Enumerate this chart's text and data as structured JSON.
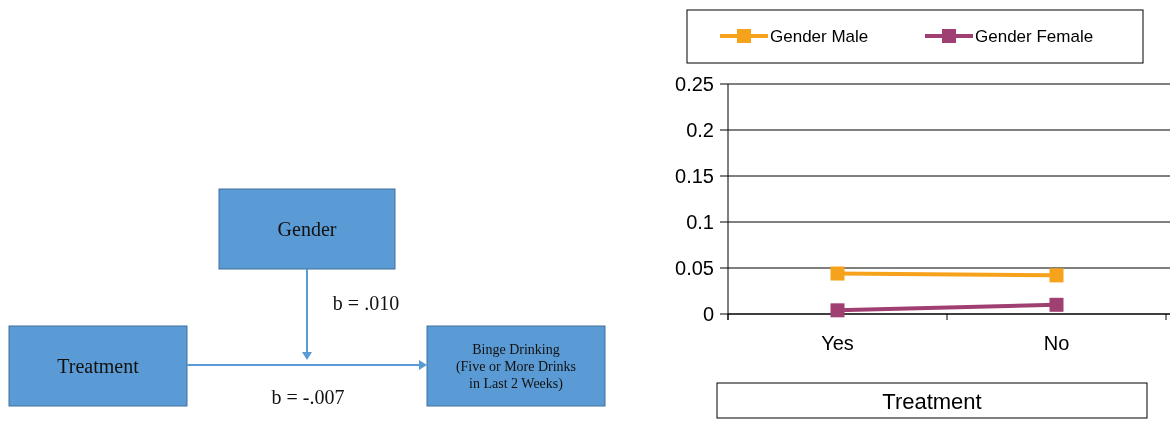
{
  "chart_data": [
    {
      "type": "other",
      "annotations": [
        "Gender",
        "Treatment",
        "Binge Drinking\n(Five or More Drinks\nin Last 2 Weeks)",
        "b = .010",
        "b = -.007"
      ]
    },
    {
      "type": "line",
      "categories": [
        "Yes",
        "No"
      ],
      "xlabel": "Treatment",
      "ylim": [
        0,
        0.25
      ],
      "yticks": [
        0,
        0.05,
        0.1,
        0.15,
        0.2,
        0.25
      ],
      "grid": "y",
      "legend": "top",
      "marker": "square",
      "line_style": "solid",
      "series": [
        {
          "name": "Gender Male",
          "color": "#f7a21b",
          "values": [
            0.044,
            0.042
          ]
        },
        {
          "name": "Gender Female",
          "color": "#a03f72",
          "values": [
            0.004,
            0.01
          ]
        }
      ]
    }
  ]
}
